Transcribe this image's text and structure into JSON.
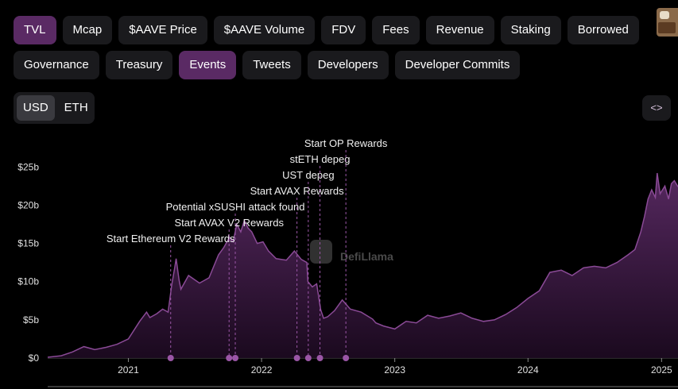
{
  "tabs": [
    {
      "label": "TVL",
      "active": true
    },
    {
      "label": "Mcap",
      "active": false
    },
    {
      "label": "$AAVE Price",
      "active": false
    },
    {
      "label": "$AAVE Volume",
      "active": false
    },
    {
      "label": "FDV",
      "active": false
    },
    {
      "label": "Fees",
      "active": false
    },
    {
      "label": "Revenue",
      "active": false
    },
    {
      "label": "Staking",
      "active": false
    },
    {
      "label": "Borrowed",
      "active": false
    },
    {
      "label": "Governance",
      "active": false
    },
    {
      "label": "Treasury",
      "active": false
    },
    {
      "label": "Events",
      "active": true
    },
    {
      "label": "Tweets",
      "active": false
    },
    {
      "label": "Developers",
      "active": false
    },
    {
      "label": "Developer Commits",
      "active": false
    }
  ],
  "currency": {
    "options": [
      "USD",
      "ETH"
    ],
    "selected": "USD"
  },
  "embed_label": "<>",
  "watermark": "DefiLlama",
  "colors": {
    "accent": "#8a4a96",
    "fill_top": "#5a2a64",
    "background": "#000000",
    "event": "#9a56a6"
  },
  "chart_data": {
    "type": "area",
    "ylabel": "",
    "xlabel": "",
    "y_unit": "$b",
    "ylim": [
      0,
      27
    ],
    "y_ticks": [
      {
        "value": 0,
        "label": "$0"
      },
      {
        "value": 5,
        "label": "$5b"
      },
      {
        "value": 10,
        "label": "$10b"
      },
      {
        "value": 15,
        "label": "$15b"
      },
      {
        "value": 20,
        "label": "$20b"
      },
      {
        "value": 25,
        "label": "$25b"
      }
    ],
    "xlim": [
      "2020-05-25",
      "2025-02-15"
    ],
    "x_ticks": [
      {
        "date": "2021-01-01",
        "label": "2021"
      },
      {
        "date": "2022-01-01",
        "label": "2022"
      },
      {
        "date": "2023-01-01",
        "label": "2023"
      },
      {
        "date": "2024-01-01",
        "label": "2024"
      },
      {
        "date": "2025-01-01",
        "label": "2025"
      }
    ],
    "grid": false,
    "series": [
      {
        "points": [
          [
            "2020-05-25",
            0.1
          ],
          [
            "2020-07-01",
            0.3
          ],
          [
            "2020-08-01",
            0.8
          ],
          [
            "2020-09-01",
            1.5
          ],
          [
            "2020-10-01",
            1.1
          ],
          [
            "2020-11-01",
            1.4
          ],
          [
            "2020-12-01",
            1.8
          ],
          [
            "2021-01-01",
            2.5
          ],
          [
            "2021-02-01",
            4.8
          ],
          [
            "2021-02-20",
            6.0
          ],
          [
            "2021-03-01",
            5.3
          ],
          [
            "2021-03-20",
            5.8
          ],
          [
            "2021-04-05",
            6.4
          ],
          [
            "2021-04-20",
            6.0
          ],
          [
            "2021-04-30",
            9.6
          ],
          [
            "2021-05-08",
            11.8
          ],
          [
            "2021-05-12",
            13.0
          ],
          [
            "2021-05-20",
            10.2
          ],
          [
            "2021-05-25",
            9.0
          ],
          [
            "2021-06-15",
            10.8
          ],
          [
            "2021-07-15",
            9.8
          ],
          [
            "2021-08-10",
            10.5
          ],
          [
            "2021-09-05",
            13.5
          ],
          [
            "2021-09-20",
            14.5
          ],
          [
            "2021-10-05",
            15.8
          ],
          [
            "2021-10-15",
            15.2
          ],
          [
            "2021-10-25",
            17.5
          ],
          [
            "2021-11-05",
            16.5
          ],
          [
            "2021-11-15",
            18.0
          ],
          [
            "2021-11-25",
            17.0
          ],
          [
            "2021-12-05",
            16.5
          ],
          [
            "2021-12-20",
            15.0
          ],
          [
            "2022-01-05",
            15.2
          ],
          [
            "2022-01-20",
            14.0
          ],
          [
            "2022-02-10",
            13.0
          ],
          [
            "2022-03-10",
            12.8
          ],
          [
            "2022-04-01",
            14.0
          ],
          [
            "2022-04-20",
            12.9
          ],
          [
            "2022-05-05",
            12.5
          ],
          [
            "2022-05-08",
            10.0
          ],
          [
            "2022-05-20",
            9.3
          ],
          [
            "2022-06-01",
            9.7
          ],
          [
            "2022-06-12",
            6.3
          ],
          [
            "2022-06-20",
            5.2
          ],
          [
            "2022-07-01",
            5.4
          ],
          [
            "2022-07-20",
            6.2
          ],
          [
            "2022-08-10",
            7.6
          ],
          [
            "2022-09-01",
            6.4
          ],
          [
            "2022-10-01",
            6.0
          ],
          [
            "2022-11-01",
            5.1
          ],
          [
            "2022-11-10",
            4.6
          ],
          [
            "2022-12-01",
            4.2
          ],
          [
            "2023-01-01",
            3.8
          ],
          [
            "2023-02-01",
            4.8
          ],
          [
            "2023-03-01",
            4.6
          ],
          [
            "2023-04-01",
            5.6
          ],
          [
            "2023-05-01",
            5.2
          ],
          [
            "2023-06-01",
            5.5
          ],
          [
            "2023-07-01",
            5.9
          ],
          [
            "2023-08-01",
            5.2
          ],
          [
            "2023-09-01",
            4.8
          ],
          [
            "2023-10-01",
            5.0
          ],
          [
            "2023-11-01",
            5.7
          ],
          [
            "2023-12-01",
            6.6
          ],
          [
            "2024-01-01",
            7.8
          ],
          [
            "2024-02-01",
            8.8
          ],
          [
            "2024-03-01",
            11.2
          ],
          [
            "2024-04-01",
            11.5
          ],
          [
            "2024-05-01",
            10.8
          ],
          [
            "2024-06-01",
            11.8
          ],
          [
            "2024-07-01",
            12.0
          ],
          [
            "2024-08-01",
            11.8
          ],
          [
            "2024-09-01",
            12.5
          ],
          [
            "2024-10-01",
            13.5
          ],
          [
            "2024-10-20",
            14.2
          ],
          [
            "2024-11-05",
            16.5
          ],
          [
            "2024-11-15",
            18.5
          ],
          [
            "2024-11-25",
            20.8
          ],
          [
            "2024-12-05",
            22.0
          ],
          [
            "2024-12-15",
            21.0
          ],
          [
            "2024-12-20",
            24.2
          ],
          [
            "2024-12-28",
            21.5
          ],
          [
            "2025-01-10",
            22.5
          ],
          [
            "2025-01-20",
            20.8
          ],
          [
            "2025-01-28",
            22.8
          ],
          [
            "2025-02-05",
            23.2
          ],
          [
            "2025-02-15",
            22.4
          ]
        ]
      }
    ],
    "events": [
      {
        "label": "Start Ethereum V2 Rewards",
        "date": "2021-04-27"
      },
      {
        "label": "Start AVAX V2 Rewards",
        "date": "2021-10-04"
      },
      {
        "label": "Potential xSUSHI attack found",
        "date": "2021-10-21"
      },
      {
        "label": "Start AVAX Rewards",
        "date": "2022-04-08"
      },
      {
        "label": "UST depeg",
        "date": "2022-05-09"
      },
      {
        "label": "stETH depeg",
        "date": "2022-06-10"
      },
      {
        "label": "Start OP Rewards",
        "date": "2022-08-20"
      }
    ]
  }
}
